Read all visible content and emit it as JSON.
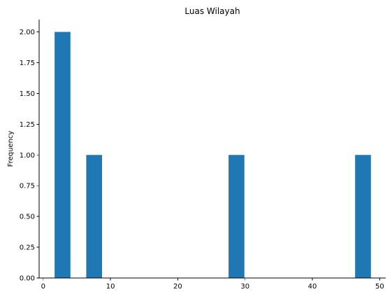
{
  "chart_data": {
    "type": "bar",
    "title": "Luas Wilayah",
    "xlabel": "",
    "ylabel": "Frequency",
    "xlim": [
      -0.6,
      50.9
    ],
    "ylim": [
      0,
      2.1
    ],
    "xticks": [
      0,
      10,
      20,
      30,
      40,
      50
    ],
    "xtick_labels": [
      "0",
      "10",
      "20",
      "30",
      "40",
      "50"
    ],
    "yticks": [
      0,
      0.25,
      0.5,
      0.75,
      1.0,
      1.25,
      1.5,
      1.75,
      2.0
    ],
    "ytick_labels": [
      "0.00",
      "0.25",
      "0.50",
      "0.75",
      "1.00",
      "1.25",
      "1.50",
      "1.75",
      "2.00"
    ],
    "bars": [
      {
        "x0": 1.7,
        "x1": 4.05,
        "value": 2
      },
      {
        "x0": 6.4,
        "x1": 8.75,
        "value": 1
      },
      {
        "x0": 27.55,
        "x1": 29.9,
        "value": 1
      },
      {
        "x0": 46.35,
        "x1": 48.7,
        "value": 1
      }
    ],
    "bar_color": "#1f77b4",
    "grid": false,
    "spines": [
      "left",
      "bottom"
    ]
  }
}
